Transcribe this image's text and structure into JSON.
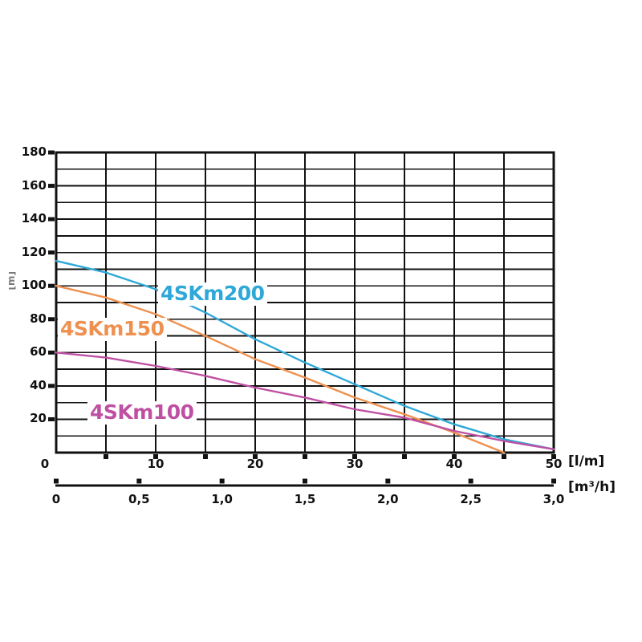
{
  "page": {
    "background": "#ffffff"
  },
  "chart_data": {
    "type": "line",
    "title": "",
    "grid": true,
    "grid_color": "#111111",
    "legend_position": "labels-on-chart",
    "y_axis": {
      "unit": "[m]",
      "min": 0,
      "max": 180,
      "grid_step": 10,
      "label_step": 20,
      "labels": [
        {
          "value": 20,
          "label": "20"
        },
        {
          "value": 40,
          "label": "40"
        },
        {
          "value": 60,
          "label": "60"
        },
        {
          "value": 80,
          "label": "80"
        },
        {
          "value": 100,
          "label": "100"
        },
        {
          "value": 120,
          "label": "120"
        },
        {
          "value": 140,
          "label": "140"
        },
        {
          "value": 160,
          "label": "160"
        },
        {
          "value": 180,
          "label": "180"
        }
      ]
    },
    "x_axis_primary": {
      "unit": "[l/m]",
      "min": 0,
      "max": 50,
      "grid_step": 5,
      "labels": [
        {
          "value": 0,
          "label": "0"
        },
        {
          "value": 10,
          "label": "10"
        },
        {
          "value": 20,
          "label": "20"
        },
        {
          "value": 30,
          "label": "30"
        },
        {
          "value": 40,
          "label": "40"
        },
        {
          "value": 50,
          "label": "50"
        }
      ]
    },
    "x_axis_secondary": {
      "unit": "[m³/h]",
      "min": 0,
      "max": 3.0,
      "labels": [
        {
          "value": 0,
          "label": "0"
        },
        {
          "value": 0.5,
          "label": "0,5"
        },
        {
          "value": 1.0,
          "label": "1,0"
        },
        {
          "value": 1.5,
          "label": "1,5"
        },
        {
          "value": 2.0,
          "label": "2,0"
        },
        {
          "value": 2.5,
          "label": "2,5"
        },
        {
          "value": 3.0,
          "label": "3,0"
        }
      ]
    },
    "series": [
      {
        "name": "4SKm200",
        "color": "#2ea8d8",
        "points": [
          [
            0,
            115
          ],
          [
            5,
            108
          ],
          [
            10,
            98
          ],
          [
            15,
            84
          ],
          [
            20,
            68
          ],
          [
            25,
            54
          ],
          [
            30,
            41
          ],
          [
            35,
            28
          ],
          [
            40,
            17
          ],
          [
            45,
            8
          ],
          [
            50,
            2
          ]
        ]
      },
      {
        "name": "4SKm150",
        "color": "#ee9150",
        "points": [
          [
            0,
            100
          ],
          [
            5,
            93
          ],
          [
            10,
            83
          ],
          [
            15,
            70
          ],
          [
            20,
            56
          ],
          [
            25,
            45
          ],
          [
            30,
            33
          ],
          [
            35,
            23
          ],
          [
            40,
            12
          ],
          [
            45,
            0
          ]
        ]
      },
      {
        "name": "4SKm100",
        "color": "#bf4fa3",
        "points": [
          [
            0,
            60
          ],
          [
            5,
            57
          ],
          [
            10,
            52
          ],
          [
            15,
            46
          ],
          [
            20,
            39
          ],
          [
            25,
            33
          ],
          [
            30,
            26
          ],
          [
            35,
            21
          ],
          [
            40,
            13
          ],
          [
            45,
            7
          ],
          [
            50,
            2
          ]
        ]
      }
    ]
  }
}
